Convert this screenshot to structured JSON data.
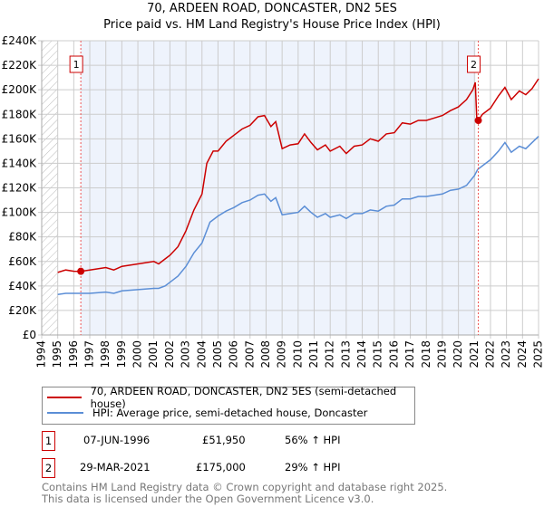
{
  "chart_data": {
    "type": "line",
    "title": "70, ARDEEN ROAD, DONCASTER, DN2 5ES",
    "subtitle": "Price paid vs. HM Land Registry's House Price Index (HPI)",
    "xlim": [
      1994,
      2025
    ],
    "ylim": [
      0,
      240000
    ],
    "x_ticks": [
      "1994",
      "1995",
      "1996",
      "1997",
      "1998",
      "1999",
      "2000",
      "2001",
      "2002",
      "2003",
      "2004",
      "2005",
      "2006",
      "2007",
      "2008",
      "2009",
      "2010",
      "2011",
      "2012",
      "2013",
      "2014",
      "2015",
      "2016",
      "2017",
      "2018",
      "2019",
      "2020",
      "2021",
      "2022",
      "2023",
      "2024",
      "2025"
    ],
    "y_ticks": [
      {
        "v": 0,
        "label": "£0"
      },
      {
        "v": 20000,
        "label": "£20K"
      },
      {
        "v": 40000,
        "label": "£40K"
      },
      {
        "v": 60000,
        "label": "£60K"
      },
      {
        "v": 80000,
        "label": "£80K"
      },
      {
        "v": 100000,
        "label": "£100K"
      },
      {
        "v": 120000,
        "label": "£120K"
      },
      {
        "v": 140000,
        "label": "£140K"
      },
      {
        "v": 160000,
        "label": "£160K"
      },
      {
        "v": 180000,
        "label": "£180K"
      },
      {
        "v": 200000,
        "label": "£200K"
      },
      {
        "v": 220000,
        "label": "£220K"
      },
      {
        "v": 240000,
        "label": "£240K"
      }
    ],
    "grid": true,
    "series": [
      {
        "name": "70, ARDEEN ROAD, DONCASTER, DN2 5ES (semi-detached house)",
        "color": "#cc0000",
        "x": [
          1995,
          1995.5,
          1996,
          1996.44,
          1997,
          1998,
          1998.5,
          1999,
          2000,
          2001,
          2001.3,
          2001.7,
          2002,
          2002.5,
          2003,
          2003.5,
          2004,
          2004.3,
          2004.7,
          2005,
          2005.5,
          2006,
          2006.5,
          2007,
          2007.5,
          2007.9,
          2008.3,
          2008.6,
          2009,
          2009.5,
          2010,
          2010.4,
          2010.8,
          2011.2,
          2011.7,
          2012,
          2012.6,
          2013,
          2013.5,
          2014,
          2014.5,
          2015,
          2015.5,
          2016,
          2016.5,
          2017,
          2017.5,
          2018,
          2018.5,
          2019,
          2019.5,
          2020,
          2020.5,
          2020.9,
          2021.05,
          2021.15,
          2021.24,
          2021.5,
          2022,
          2022.5,
          2022.9,
          2023.3,
          2023.8,
          2024.2,
          2024.6,
          2025
        ],
        "y": [
          51000,
          53000,
          52000,
          51950,
          53000,
          55000,
          53000,
          56000,
          58000,
          60000,
          58000,
          62000,
          65000,
          72000,
          85000,
          102000,
          115000,
          140000,
          150000,
          150000,
          158000,
          163000,
          168000,
          171000,
          178000,
          179000,
          170000,
          174000,
          152000,
          155000,
          156000,
          164000,
          157000,
          151000,
          155000,
          150000,
          154000,
          148000,
          154000,
          155000,
          160000,
          158000,
          164000,
          165000,
          173000,
          172000,
          175000,
          175000,
          177000,
          179000,
          183000,
          186000,
          192000,
          200000,
          206000,
          176000,
          175000,
          180000,
          185000,
          195000,
          202000,
          192000,
          199000,
          196000,
          201000,
          209000
        ]
      },
      {
        "name": "HPI: Average price, semi-detached house, Doncaster",
        "color": "#5b8ed6",
        "x": [
          1995,
          1995.5,
          1996,
          1997,
          1998,
          1998.5,
          1999,
          2000,
          2001,
          2001.3,
          2001.7,
          2002,
          2002.5,
          2003,
          2003.5,
          2004,
          2004.5,
          2005,
          2005.5,
          2006,
          2006.5,
          2007,
          2007.5,
          2007.9,
          2008.3,
          2008.6,
          2009,
          2009.5,
          2010,
          2010.4,
          2010.8,
          2011.2,
          2011.7,
          2012,
          2012.6,
          2013,
          2013.5,
          2014,
          2014.5,
          2015,
          2015.5,
          2016,
          2016.5,
          2017,
          2017.5,
          2018,
          2018.5,
          2019,
          2019.5,
          2020,
          2020.5,
          2021,
          2021.2,
          2021.5,
          2022,
          2022.5,
          2022.9,
          2023.3,
          2023.8,
          2024.2,
          2024.6,
          2025
        ],
        "y": [
          33000,
          34000,
          34000,
          34000,
          35000,
          34000,
          36000,
          37000,
          38000,
          38000,
          40000,
          43000,
          48000,
          56000,
          67000,
          75000,
          92000,
          97000,
          101000,
          104000,
          108000,
          110000,
          114000,
          115000,
          109000,
          112000,
          98000,
          99000,
          100000,
          105000,
          100000,
          96000,
          99000,
          96000,
          98000,
          95000,
          99000,
          99000,
          102000,
          101000,
          105000,
          106000,
          111000,
          111000,
          113000,
          113000,
          114000,
          115000,
          118000,
          119000,
          122000,
          130000,
          135000,
          138000,
          143000,
          150000,
          157000,
          149000,
          154000,
          152000,
          157000,
          162000
        ]
      }
    ],
    "annotations": [
      {
        "label": "1",
        "x": 1996.44,
        "y": 51950
      },
      {
        "label": "2",
        "x": 2021.24,
        "y": 175000
      }
    ],
    "legend_placement": "bottom"
  },
  "transactions": [
    {
      "num": "1",
      "date": "07-JUN-1996",
      "price": "£51,950",
      "hpi": "56% ↑ HPI"
    },
    {
      "num": "2",
      "date": "29-MAR-2021",
      "price": "£175,000",
      "hpi": "29% ↑ HPI"
    }
  ],
  "footer": {
    "line1": "Contains HM Land Registry data © Crown copyright and database right 2025.",
    "line2": "This data is licensed under the Open Government Licence v3.0."
  }
}
